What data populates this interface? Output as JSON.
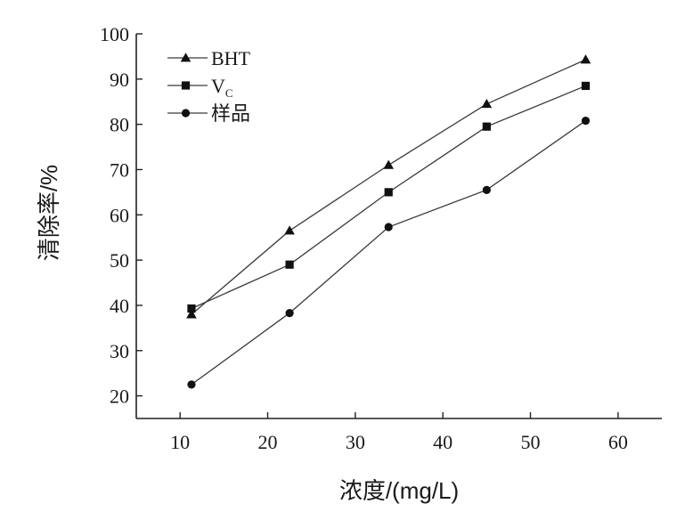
{
  "chart_data": {
    "type": "line",
    "xlabel": "浓度/(mg/L)",
    "ylabel": "清除率/%",
    "xlim": [
      5,
      65
    ],
    "ylim": [
      15,
      100
    ],
    "xticks": [
      10,
      20,
      30,
      40,
      50,
      60
    ],
    "yticks": [
      20,
      30,
      40,
      50,
      60,
      70,
      80,
      90,
      100
    ],
    "legend_position": "top-left",
    "series": [
      {
        "name": "BHT",
        "marker": "triangle",
        "legend": {
          "main": "BHT",
          "sub": ""
        },
        "x": [
          11.3,
          22.5,
          33.8,
          45.0,
          56.3
        ],
        "y": [
          38.0,
          56.5,
          71.0,
          84.5,
          94.3
        ]
      },
      {
        "name": "VC",
        "marker": "square",
        "legend": {
          "main": "V",
          "sub": "C"
        },
        "x": [
          11.3,
          22.5,
          33.8,
          45.0,
          56.3
        ],
        "y": [
          39.3,
          49.0,
          65.0,
          79.5,
          88.5
        ]
      },
      {
        "name": "样品",
        "marker": "circle",
        "legend": {
          "main": "样品",
          "sub": ""
        },
        "x": [
          11.3,
          22.5,
          33.8,
          45.0,
          56.3
        ],
        "y": [
          22.5,
          38.3,
          57.3,
          65.5,
          80.8
        ]
      }
    ]
  }
}
